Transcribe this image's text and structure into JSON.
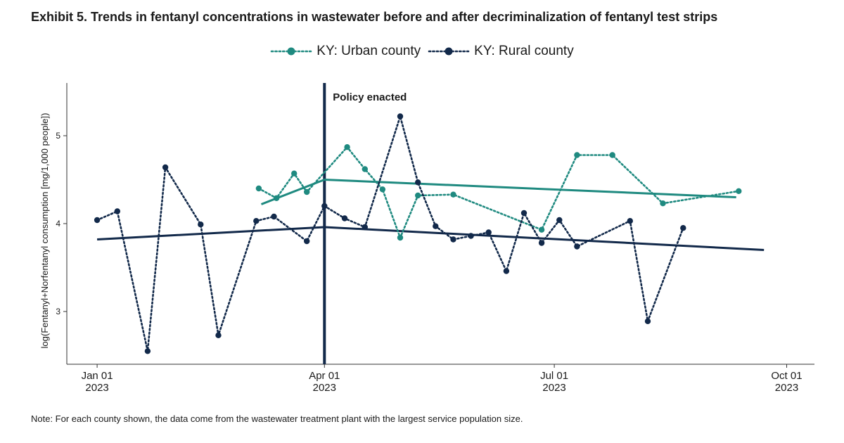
{
  "title": "Exhibit 5. Trends in fentanyl concentrations in wastewater before and after decriminalization of fentanyl test strips",
  "note": "Note: For each county shown, the data come from the wastewater treatment plant with the largest service population size.",
  "chart_data": {
    "type": "line",
    "ylabel": "log(Fentanyl+Norfentanyl consumption [mg/1,000 people])",
    "ylim": [
      2.4,
      5.6
    ],
    "yticks": [
      3,
      4,
      5
    ],
    "xlim": [
      -12,
      284
    ],
    "xticks": [
      {
        "day": 0,
        "line1": "Jan 01",
        "line2": "2023"
      },
      {
        "day": 90,
        "line1": "Apr 01",
        "line2": "2023"
      },
      {
        "day": 181,
        "line1": "Jul 01",
        "line2": "2023"
      },
      {
        "day": 273,
        "line1": "Oct 01",
        "line2": "2023"
      }
    ],
    "policy": {
      "day": 90,
      "label": "Policy enacted"
    },
    "series": [
      {
        "name": "KY: Urban county",
        "color": "#1f8a80",
        "x": [
          64,
          71,
          78,
          83,
          99,
          106,
          113,
          120,
          127,
          141,
          176,
          190,
          204,
          224,
          254
        ],
        "y": [
          4.4,
          4.29,
          4.57,
          4.36,
          4.87,
          4.62,
          4.39,
          3.84,
          4.32,
          4.33,
          3.93,
          4.78,
          4.78,
          4.23,
          4.37
        ],
        "trend": [
          {
            "x": 65,
            "y": 4.22
          },
          {
            "x": 90,
            "y": 4.5
          },
          {
            "x": 253,
            "y": 4.3
          }
        ]
      },
      {
        "name": "KY: Rural county",
        "color": "#12294a",
        "x": [
          0,
          8,
          20,
          27,
          41,
          48,
          63,
          70,
          83,
          90,
          98,
          106,
          120,
          127,
          134,
          141,
          148,
          155,
          162,
          169,
          176,
          183,
          190,
          211,
          218,
          232
        ],
        "y": [
          4.04,
          4.14,
          2.55,
          4.64,
          3.99,
          2.73,
          4.03,
          4.08,
          3.8,
          4.2,
          4.06,
          3.96,
          5.22,
          4.47,
          3.97,
          3.82,
          3.86,
          3.9,
          3.46,
          4.12,
          3.78,
          4.04,
          3.74,
          4.03,
          2.89,
          3.95
        ],
        "trend": [
          {
            "x": 0,
            "y": 3.82
          },
          {
            "x": 90,
            "y": 3.96
          },
          {
            "x": 264,
            "y": 3.7
          }
        ]
      }
    ]
  }
}
